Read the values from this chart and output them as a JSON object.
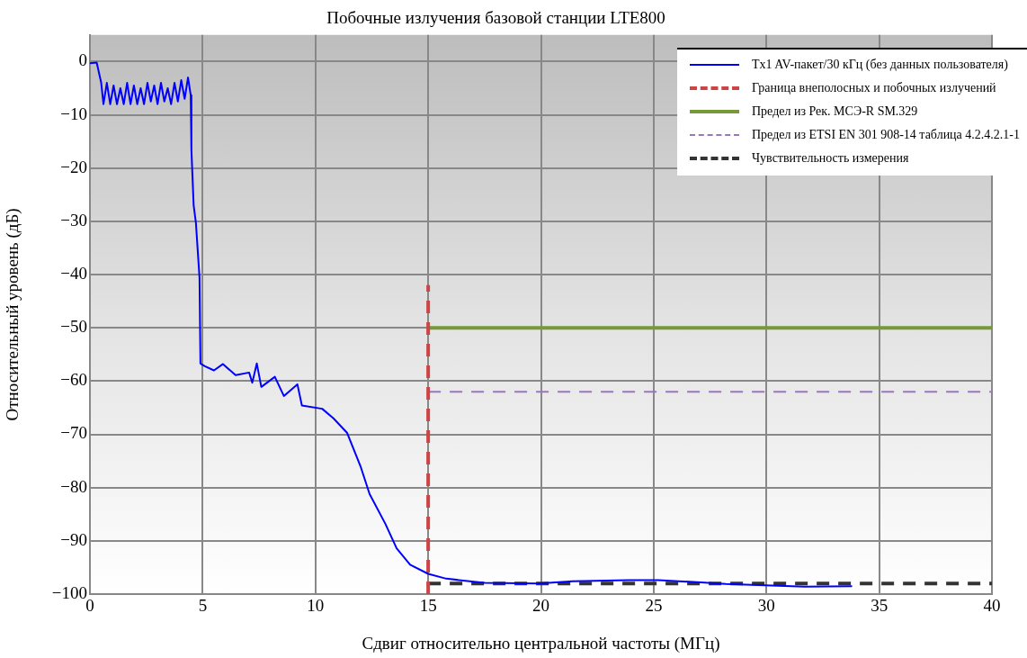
{
  "chart_data": {
    "type": "line",
    "title": "Побочные излучения базовой станции LTE800",
    "xlabel": "Сдвиг относительно центральной частоты (МГц)",
    "ylabel": "Относительный уровень (дБ)",
    "xlim": [
      0,
      40
    ],
    "xticks": [
      0,
      5,
      10,
      15,
      20,
      25,
      30,
      35,
      40
    ],
    "ylim": [
      -100,
      5
    ],
    "yticks": [
      -100,
      -90,
      -80,
      -70,
      -60,
      -50,
      -40,
      -30,
      -20,
      -10,
      0
    ],
    "grid": true,
    "legend": "top right",
    "marker": "none",
    "series": [
      {
        "name": "Tx1 AV-пакет/30 кГц (без данных пользователя)",
        "color": "#0000ff",
        "line_style": "solid",
        "x": [
          0,
          0.3,
          0.5,
          0.6,
          0.75,
          0.9,
          1.05,
          1.2,
          1.35,
          1.5,
          1.65,
          1.8,
          1.95,
          2.1,
          2.25,
          2.4,
          2.55,
          2.7,
          2.85,
          3.0,
          3.15,
          3.3,
          3.45,
          3.6,
          3.75,
          3.9,
          4.05,
          4.2,
          4.35,
          4.47,
          4.5,
          4.6,
          4.7,
          4.86,
          4.9,
          5.1,
          5.5,
          5.9,
          6.46,
          7.06,
          7.2,
          7.4,
          7.6,
          8.2,
          8.6,
          9.2,
          9.4,
          10.3,
          10.8,
          11.4,
          12.0,
          12.4,
          13.1,
          13.6,
          14.2,
          15.0,
          15.8,
          17.5,
          19.9,
          21.4,
          23.9,
          25.2,
          27.1,
          28.2,
          31.7,
          33.8
        ],
        "values": [
          -0.3,
          -0.2,
          -4,
          -8,
          -4,
          -8,
          -4.5,
          -8,
          -5,
          -8,
          -4,
          -8,
          -4.5,
          -8,
          -5,
          -8,
          -4,
          -7.5,
          -4.5,
          -8,
          -4,
          -7.5,
          -5,
          -8,
          -4,
          -7.5,
          -3.5,
          -7,
          -3,
          -6.3,
          -16.6,
          -27,
          -30.3,
          -40.6,
          -56.7,
          -57.2,
          -58,
          -56.8,
          -58.9,
          -58.4,
          -60.3,
          -56.7,
          -61.1,
          -59.2,
          -62.8,
          -60.6,
          -64.6,
          -65.2,
          -67,
          -69.7,
          -76,
          -81.2,
          -86.8,
          -91.4,
          -94.5,
          -96.2,
          -97.1,
          -97.9,
          -98,
          -97.6,
          -97.4,
          -97.4,
          -97.8,
          -98.1,
          -98.6,
          -98.5
        ]
      },
      {
        "name": "Граница внеполосных и побочных излучений",
        "color": "#cc4444",
        "line_style": "dashed",
        "x": [
          15,
          15
        ],
        "values": [
          -100,
          -42
        ]
      },
      {
        "name": "Предел из Рек. МСЭ-R SM.329",
        "color": "#77993a",
        "line_style": "solid",
        "x": [
          15,
          40
        ],
        "values": [
          -50,
          -50
        ]
      },
      {
        "name": "Предел из ETSI EN 301 908-14 таблица 4.2.4.2.1-1",
        "color": "#9977bb",
        "line_style": "dashed",
        "x": [
          15,
          40
        ],
        "values": [
          -62,
          -62
        ]
      },
      {
        "name": "Чувствительность измерения",
        "color": "#333333",
        "line_style": "dashed",
        "x": [
          15,
          40
        ],
        "values": [
          -98,
          -98
        ]
      }
    ]
  }
}
